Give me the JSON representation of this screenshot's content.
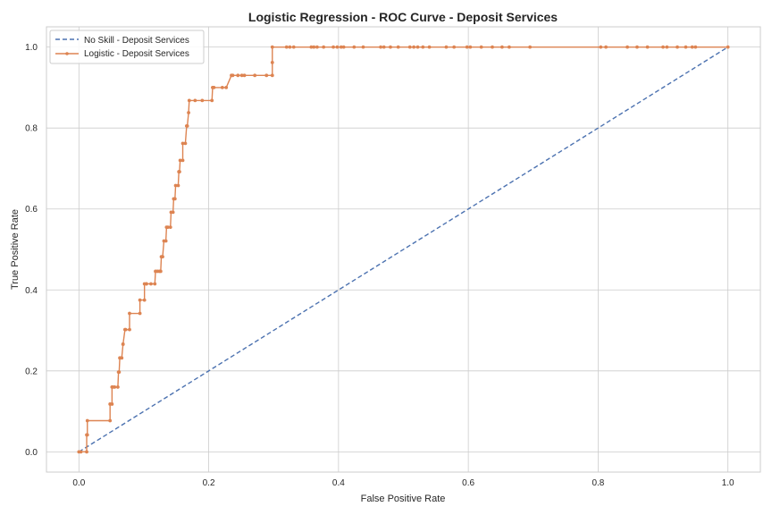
{
  "chart_data": {
    "type": "line",
    "title": "Logistic Regression - ROC Curve - Deposit Services",
    "xlabel": "False Positive Rate",
    "ylabel": "True Positive Rate",
    "xlim": [
      -0.05,
      1.05
    ],
    "ylim": [
      -0.05,
      1.05
    ],
    "xticks": [
      "0.0",
      "0.2",
      "0.4",
      "0.6",
      "0.8",
      "1.0"
    ],
    "yticks": [
      "0.0",
      "0.2",
      "0.4",
      "0.6",
      "0.8",
      "1.0"
    ],
    "grid": true,
    "legend_position": "top-left",
    "series": [
      {
        "name": "No Skill - Deposit Services",
        "style": "dashed",
        "color": "#4c72b0",
        "x": [
          0,
          1
        ],
        "y": [
          0,
          1
        ]
      },
      {
        "name": "Logistic - Deposit Services",
        "style": "solid-markers",
        "color": "#dd8452",
        "x": [
          0.0,
          0.003,
          0.012,
          0.012,
          0.013,
          0.013,
          0.048,
          0.048,
          0.051,
          0.051,
          0.052,
          0.055,
          0.06,
          0.061,
          0.062,
          0.063,
          0.066,
          0.068,
          0.068,
          0.071,
          0.072,
          0.078,
          0.078,
          0.094,
          0.094,
          0.101,
          0.101,
          0.104,
          0.104,
          0.111,
          0.117,
          0.118,
          0.121,
          0.124,
          0.126,
          0.127,
          0.129,
          0.131,
          0.134,
          0.135,
          0.137,
          0.141,
          0.142,
          0.145,
          0.146,
          0.148,
          0.149,
          0.153,
          0.154,
          0.155,
          0.156,
          0.16,
          0.16,
          0.164,
          0.166,
          0.167,
          0.169,
          0.17,
          0.179,
          0.19,
          0.205,
          0.206,
          0.208,
          0.221,
          0.227,
          0.235,
          0.237,
          0.245,
          0.251,
          0.255,
          0.271,
          0.289,
          0.298,
          0.298,
          0.298,
          0.32,
          0.325,
          0.331,
          0.358,
          0.362,
          0.367,
          0.377,
          0.392,
          0.398,
          0.404,
          0.408,
          0.424,
          0.438,
          0.465,
          0.47,
          0.48,
          0.492,
          0.51,
          0.516,
          0.522,
          0.53,
          0.54,
          0.566,
          0.578,
          0.598,
          0.603,
          0.62,
          0.637,
          0.652,
          0.663,
          0.695,
          0.804,
          0.812,
          0.845,
          0.86,
          0.876,
          0.9,
          0.906,
          0.922,
          0.935,
          0.945,
          0.95,
          1.0
        ],
        "y": [
          0.0,
          0.0,
          0.0,
          0.042,
          0.042,
          0.077,
          0.077,
          0.118,
          0.118,
          0.16,
          0.16,
          0.16,
          0.16,
          0.197,
          0.197,
          0.232,
          0.232,
          0.266,
          0.266,
          0.302,
          0.302,
          0.302,
          0.342,
          0.342,
          0.375,
          0.375,
          0.415,
          0.415,
          0.415,
          0.415,
          0.415,
          0.446,
          0.446,
          0.446,
          0.446,
          0.482,
          0.482,
          0.521,
          0.521,
          0.555,
          0.555,
          0.555,
          0.592,
          0.592,
          0.625,
          0.625,
          0.658,
          0.658,
          0.692,
          0.692,
          0.72,
          0.72,
          0.762,
          0.762,
          0.805,
          0.805,
          0.838,
          0.868,
          0.868,
          0.868,
          0.868,
          0.9,
          0.9,
          0.9,
          0.9,
          0.93,
          0.93,
          0.93,
          0.93,
          0.93,
          0.93,
          0.93,
          0.93,
          0.962,
          1.0,
          1.0,
          1.0,
          1.0,
          1.0,
          1.0,
          1.0,
          1.0,
          1.0,
          1.0,
          1.0,
          1.0,
          1.0,
          1.0,
          1.0,
          1.0,
          1.0,
          1.0,
          1.0,
          1.0,
          1.0,
          1.0,
          1.0,
          1.0,
          1.0,
          1.0,
          1.0,
          1.0,
          1.0,
          1.0,
          1.0,
          1.0,
          1.0,
          1.0,
          1.0,
          1.0,
          1.0,
          1.0,
          1.0,
          1.0,
          1.0,
          1.0,
          1.0,
          1.0
        ]
      }
    ]
  }
}
